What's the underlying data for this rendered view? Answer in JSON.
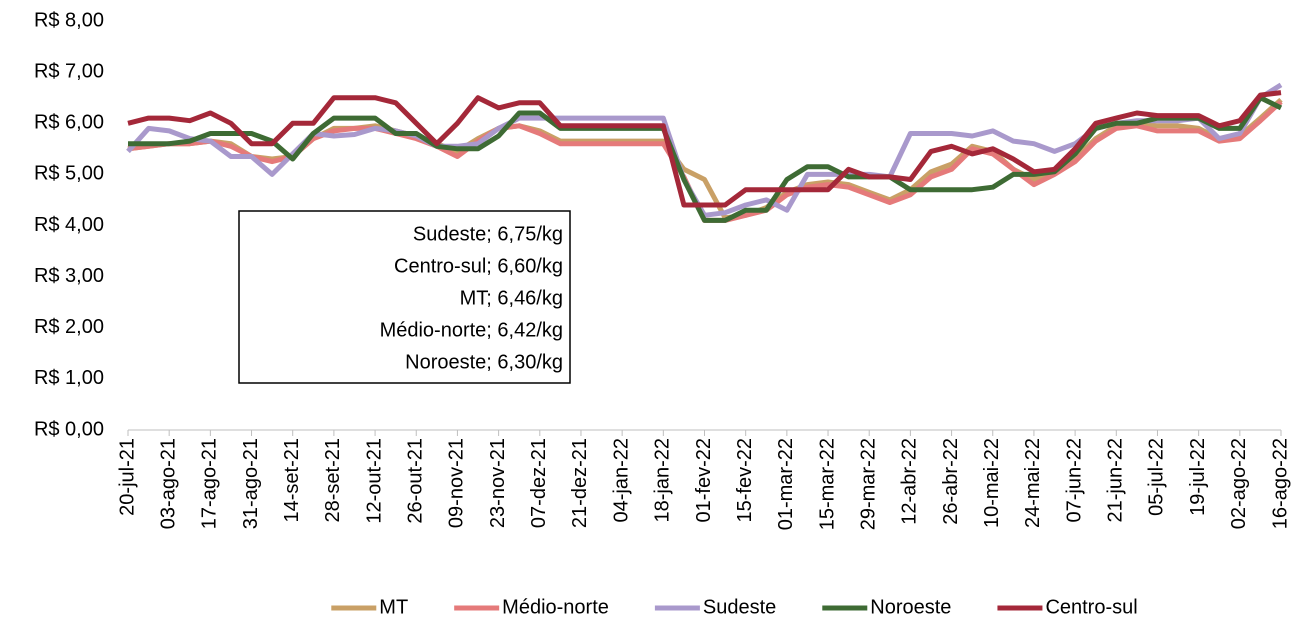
{
  "chart_data": {
    "type": "line",
    "categories": [
      "20-jul-21",
      null,
      "03-ago-21",
      null,
      "17-ago-21",
      null,
      "31-ago-21",
      null,
      "14-set-21",
      null,
      "28-set-21",
      null,
      "12-out-21",
      null,
      "26-out-21",
      null,
      "09-nov-21",
      null,
      "23-nov-21",
      null,
      "07-dez-21",
      null,
      "21-dez-21",
      null,
      "04-jan-22",
      null,
      "18-jan-22",
      null,
      "01-fev-22",
      null,
      "15-fev-22",
      null,
      "01-mar-22",
      null,
      "15-mar-22",
      null,
      "29-mar-22",
      null,
      "12-abr-22",
      null,
      "26-abr-22",
      null,
      "10-mai-22",
      null,
      "24-mai-22",
      null,
      "07-jun-22",
      null,
      "21-jun-22",
      null,
      "05-jul-22",
      null,
      "19-jul-22",
      null,
      "02-ago-22",
      null,
      "16-ago-22"
    ],
    "series": [
      {
        "name": "MT",
        "color": "#c9a066",
        "values": [
          5.5,
          5.55,
          5.6,
          5.6,
          5.65,
          5.6,
          5.35,
          5.3,
          5.35,
          5.7,
          5.9,
          5.9,
          5.95,
          5.85,
          5.75,
          5.6,
          5.45,
          5.7,
          5.9,
          5.95,
          5.85,
          5.65,
          5.65,
          5.65,
          5.65,
          5.65,
          5.65,
          5.1,
          4.9,
          4.15,
          4.2,
          4.35,
          4.65,
          4.8,
          4.85,
          4.8,
          4.65,
          4.5,
          4.7,
          5.05,
          5.2,
          5.55,
          5.45,
          5.1,
          4.9,
          5.05,
          5.3,
          5.7,
          5.95,
          6.0,
          5.95,
          5.95,
          5.9,
          5.7,
          5.75,
          6.1,
          6.46
        ]
      },
      {
        "name": "Médio-norte",
        "color": "#e57a7a",
        "values": [
          5.5,
          5.55,
          5.6,
          5.6,
          5.65,
          5.55,
          5.35,
          5.25,
          5.35,
          5.7,
          5.85,
          5.9,
          5.9,
          5.8,
          5.7,
          5.55,
          5.35,
          5.65,
          5.9,
          5.95,
          5.8,
          5.6,
          5.6,
          5.6,
          5.6,
          5.6,
          5.6,
          4.95,
          4.1,
          4.1,
          4.2,
          4.3,
          4.6,
          4.75,
          4.8,
          4.75,
          4.6,
          4.45,
          4.6,
          4.95,
          5.1,
          5.5,
          5.4,
          5.1,
          4.8,
          5.0,
          5.25,
          5.65,
          5.9,
          5.95,
          5.85,
          5.85,
          5.85,
          5.65,
          5.7,
          6.05,
          6.42
        ]
      },
      {
        "name": "Sudeste",
        "color": "#a999cc",
        "values": [
          5.45,
          5.9,
          5.85,
          5.7,
          5.65,
          5.35,
          5.35,
          5.0,
          5.4,
          5.8,
          5.75,
          5.78,
          5.9,
          5.85,
          5.75,
          5.55,
          5.55,
          5.6,
          5.9,
          6.1,
          6.1,
          6.1,
          6.1,
          6.1,
          6.1,
          6.1,
          6.1,
          4.9,
          4.2,
          4.25,
          4.4,
          4.5,
          4.3,
          5.0,
          5.0,
          5.0,
          5.0,
          4.95,
          5.8,
          5.8,
          5.8,
          5.75,
          5.85,
          5.65,
          5.6,
          5.45,
          5.6,
          5.9,
          6.0,
          6.05,
          6.05,
          6.05,
          6.1,
          5.7,
          5.8,
          6.5,
          6.75
        ]
      },
      {
        "name": "Noroeste",
        "color": "#3e6b34",
        "values": [
          5.6,
          5.6,
          5.6,
          5.65,
          5.8,
          5.8,
          5.8,
          5.65,
          5.3,
          5.8,
          6.1,
          6.1,
          6.1,
          5.8,
          5.8,
          5.55,
          5.5,
          5.5,
          5.75,
          6.2,
          6.2,
          5.9,
          5.9,
          5.9,
          5.9,
          5.9,
          5.9,
          4.9,
          4.1,
          4.1,
          4.3,
          4.3,
          4.9,
          5.15,
          5.15,
          4.95,
          4.95,
          4.95,
          4.7,
          4.7,
          4.7,
          4.7,
          4.75,
          5.0,
          5.0,
          5.05,
          5.4,
          5.9,
          6.0,
          6.0,
          6.1,
          6.1,
          6.1,
          5.9,
          5.9,
          6.5,
          6.3
        ]
      },
      {
        "name": "Centro-sul",
        "color": "#a42839",
        "values": [
          6.0,
          6.1,
          6.1,
          6.05,
          6.2,
          6.0,
          5.6,
          5.6,
          6.0,
          6.0,
          6.5,
          6.5,
          6.5,
          6.4,
          6.0,
          5.6,
          6.0,
          6.5,
          6.3,
          6.4,
          6.4,
          5.95,
          5.95,
          5.95,
          5.95,
          5.95,
          5.95,
          4.4,
          4.4,
          4.4,
          4.7,
          4.7,
          4.7,
          4.7,
          4.7,
          5.1,
          4.95,
          4.95,
          4.9,
          5.45,
          5.55,
          5.4,
          5.5,
          5.3,
          5.05,
          5.1,
          5.5,
          6.0,
          6.1,
          6.2,
          6.15,
          6.15,
          6.15,
          5.95,
          6.05,
          6.55,
          6.6
        ]
      }
    ],
    "ylim": [
      0,
      8
    ],
    "yticks": [
      {
        "value": 0,
        "label": "R$ 0,00"
      },
      {
        "value": 1,
        "label": "R$ 1,00"
      },
      {
        "value": 2,
        "label": "R$ 2,00"
      },
      {
        "value": 3,
        "label": "R$ 3,00"
      },
      {
        "value": 4,
        "label": "R$ 4,00"
      },
      {
        "value": 5,
        "label": "R$ 5,00"
      },
      {
        "value": 6,
        "label": "R$ 6,00"
      },
      {
        "value": 7,
        "label": "R$ 7,00"
      },
      {
        "value": 8,
        "label": "R$ 8,00"
      }
    ],
    "annotations": [
      "Sudeste; 6,75/kg",
      "Centro-sul; 6,60/kg",
      "MT; 6,46/kg",
      "Médio-norte; 6,42/kg",
      "Noroeste; 6,30/kg"
    ],
    "grid": false,
    "legend": "bottom"
  }
}
